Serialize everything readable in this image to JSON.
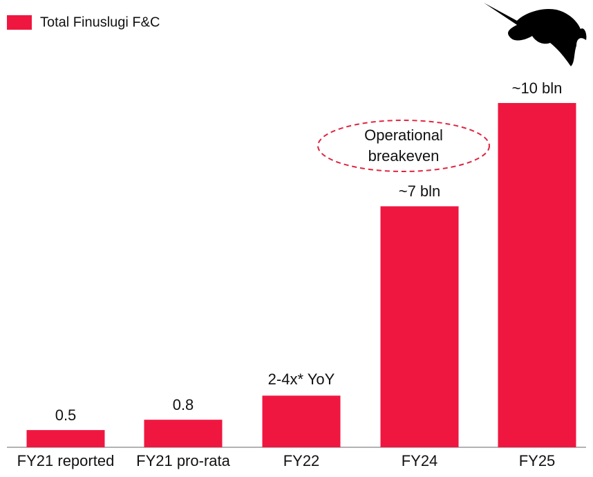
{
  "chart_data": {
    "type": "bar",
    "legend": "Total Finuslugi F&C",
    "categories": [
      "FY21 reported",
      "FY21 pro-rata",
      "FY22",
      "FY24",
      "FY25"
    ],
    "values": [
      0.5,
      0.8,
      1.5,
      7,
      10
    ],
    "value_labels": [
      "0.5",
      "0.8",
      null,
      "~7 bln",
      "~10 bln"
    ],
    "annotations": [
      "2-4x* YoY",
      "Operational breakeven"
    ],
    "color": "#ef1740",
    "ylim": [
      0,
      10
    ]
  }
}
